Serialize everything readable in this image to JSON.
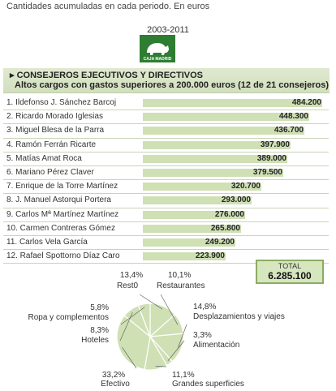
{
  "subtitle": "Cantidades acumuladas en cada periodo. En euros",
  "period": "2003-2011",
  "logo_text": "CAJA MADRID",
  "header": {
    "title": "CONSEJEROS EJECUTIVOS Y DIRECTIVOS",
    "subtitle": "Altos cargos con gastos superiores a 200.000 euros (12 de 21 consejeros)"
  },
  "total": {
    "label": "TOTAL",
    "value": "6.285.100"
  },
  "colors": {
    "bar": "#cfe0b4",
    "pie": "#cfe0b4",
    "header": "#d2dfbe",
    "border": "#8dab63"
  },
  "chart_data": [
    {
      "type": "bar",
      "orientation": "horizontal",
      "categories": [
        "1. Ildefonso J. Sánchez Barcoj",
        "2. Ricardo Morado Iglesias",
        "3. Miguel Blesa de la Parra",
        "4. Ramón Ferrán Ricarte",
        "5. Matías Amat Roca",
        "6. Mariano Pérez Claver",
        "7. Enrique de la Torre Martínez",
        "8. J. Manuel Astorqui Portera",
        "9. Carlos Mª Martínez Martínez",
        "10. Carmen Contreras Gómez",
        "11. Carlos Vela García",
        "12. Rafael Spottorno Díaz Caro"
      ],
      "values": [
        484200,
        448300,
        436700,
        397900,
        389000,
        379500,
        320700,
        293000,
        276000,
        265800,
        249200,
        223900
      ],
      "value_labels": [
        "484.200",
        "448.300",
        "436.700",
        "397.900",
        "389.000",
        "379.500",
        "320.700",
        "293.000",
        "276.000",
        "265.800",
        "249.200",
        "223.900"
      ]
    },
    {
      "type": "pie",
      "slices": [
        {
          "label": "Rest0",
          "pct": "13,4%",
          "value": 13.4
        },
        {
          "label": "Restaurantes",
          "pct": "10,1%",
          "value": 10.1
        },
        {
          "label": "Desplazamientos y viajes",
          "pct": "14,8%",
          "value": 14.8
        },
        {
          "label": "Alimentación",
          "pct": "3,3%",
          "value": 3.3
        },
        {
          "label": "Grandes superficies",
          "pct": "11,1%",
          "value": 11.1
        },
        {
          "label": "Efectivo",
          "pct": "33,2%",
          "value": 33.2
        },
        {
          "label": "Hoteles",
          "pct": "8,3%",
          "value": 8.3
        },
        {
          "label": "Ropa y complementos",
          "pct": "5,8%",
          "value": 5.8
        }
      ]
    }
  ]
}
